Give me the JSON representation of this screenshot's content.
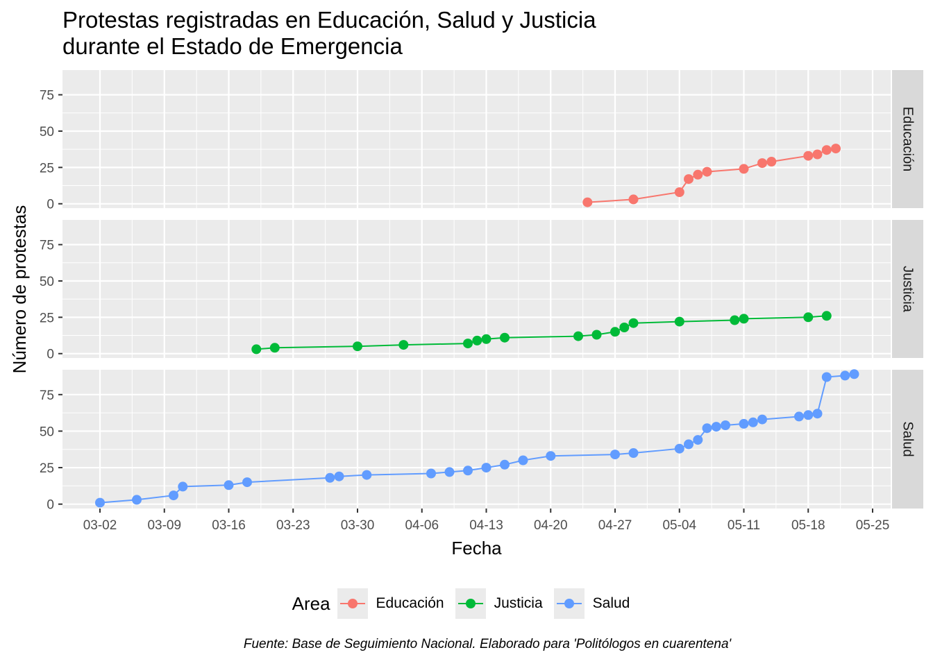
{
  "title_lines": [
    "Protestas registradas en Educación, Salud y Justicia",
    "durante el Estado de Emergencia"
  ],
  "caption": "Fuente: Base de Seguimiento Nacional. Elaborado para 'Politólogos en cuarentena'",
  "legend": {
    "title": "Area",
    "items": [
      {
        "label": "Educación",
        "color": "#F8766D"
      },
      {
        "label": "Justicia",
        "color": "#00BA38"
      },
      {
        "label": "Salud",
        "color": "#619CFF"
      }
    ]
  },
  "chart_data": {
    "type": "line",
    "xlabel": "Fecha",
    "ylabel": "Número de protestas",
    "x_tick_labels": [
      "03-02",
      "03-09",
      "03-16",
      "03-23",
      "03-30",
      "04-06",
      "04-13",
      "04-20",
      "04-27",
      "05-04",
      "05-11",
      "05-18",
      "05-25"
    ],
    "y_ticks": [
      0,
      25,
      50,
      75
    ],
    "ylim": [
      -3,
      92
    ],
    "grid": true,
    "legend_position": "bottom",
    "series": [
      {
        "name": "Educación",
        "color": "#F8766D",
        "x": [
          "04-24",
          "04-29",
          "05-04",
          "05-05",
          "05-06",
          "05-07",
          "05-11",
          "05-13",
          "05-14",
          "05-18",
          "05-19",
          "05-20",
          "05-21"
        ],
        "y": [
          1,
          3,
          8,
          17,
          20,
          22,
          24,
          28,
          29,
          33,
          34,
          37,
          38
        ]
      },
      {
        "name": "Justicia",
        "color": "#00BA38",
        "x": [
          "03-19",
          "03-21",
          "03-30",
          "04-04",
          "04-11",
          "04-12",
          "04-13",
          "04-15",
          "04-23",
          "04-25",
          "04-27",
          "04-28",
          "04-29",
          "05-04",
          "05-10",
          "05-11",
          "05-18",
          "05-20"
        ],
        "y": [
          3,
          4,
          5,
          6,
          7,
          9,
          10,
          11,
          12,
          13,
          15,
          18,
          21,
          22,
          23,
          24,
          25,
          26
        ]
      },
      {
        "name": "Salud",
        "color": "#619CFF",
        "x": [
          "03-02",
          "03-06",
          "03-10",
          "03-11",
          "03-16",
          "03-18",
          "03-27",
          "03-28",
          "03-31",
          "04-07",
          "04-09",
          "04-11",
          "04-13",
          "04-15",
          "04-17",
          "04-20",
          "04-27",
          "04-29",
          "05-04",
          "05-05",
          "05-06",
          "05-07",
          "05-08",
          "05-09",
          "05-11",
          "05-12",
          "05-13",
          "05-17",
          "05-18",
          "05-19",
          "05-20",
          "05-22",
          "05-23"
        ],
        "y": [
          1,
          3,
          6,
          12,
          13,
          15,
          18,
          19,
          20,
          21,
          22,
          23,
          25,
          27,
          30,
          33,
          34,
          35,
          38,
          41,
          44,
          52,
          53,
          54,
          55,
          56,
          58,
          60,
          61,
          62,
          87,
          88,
          89
        ]
      }
    ]
  }
}
